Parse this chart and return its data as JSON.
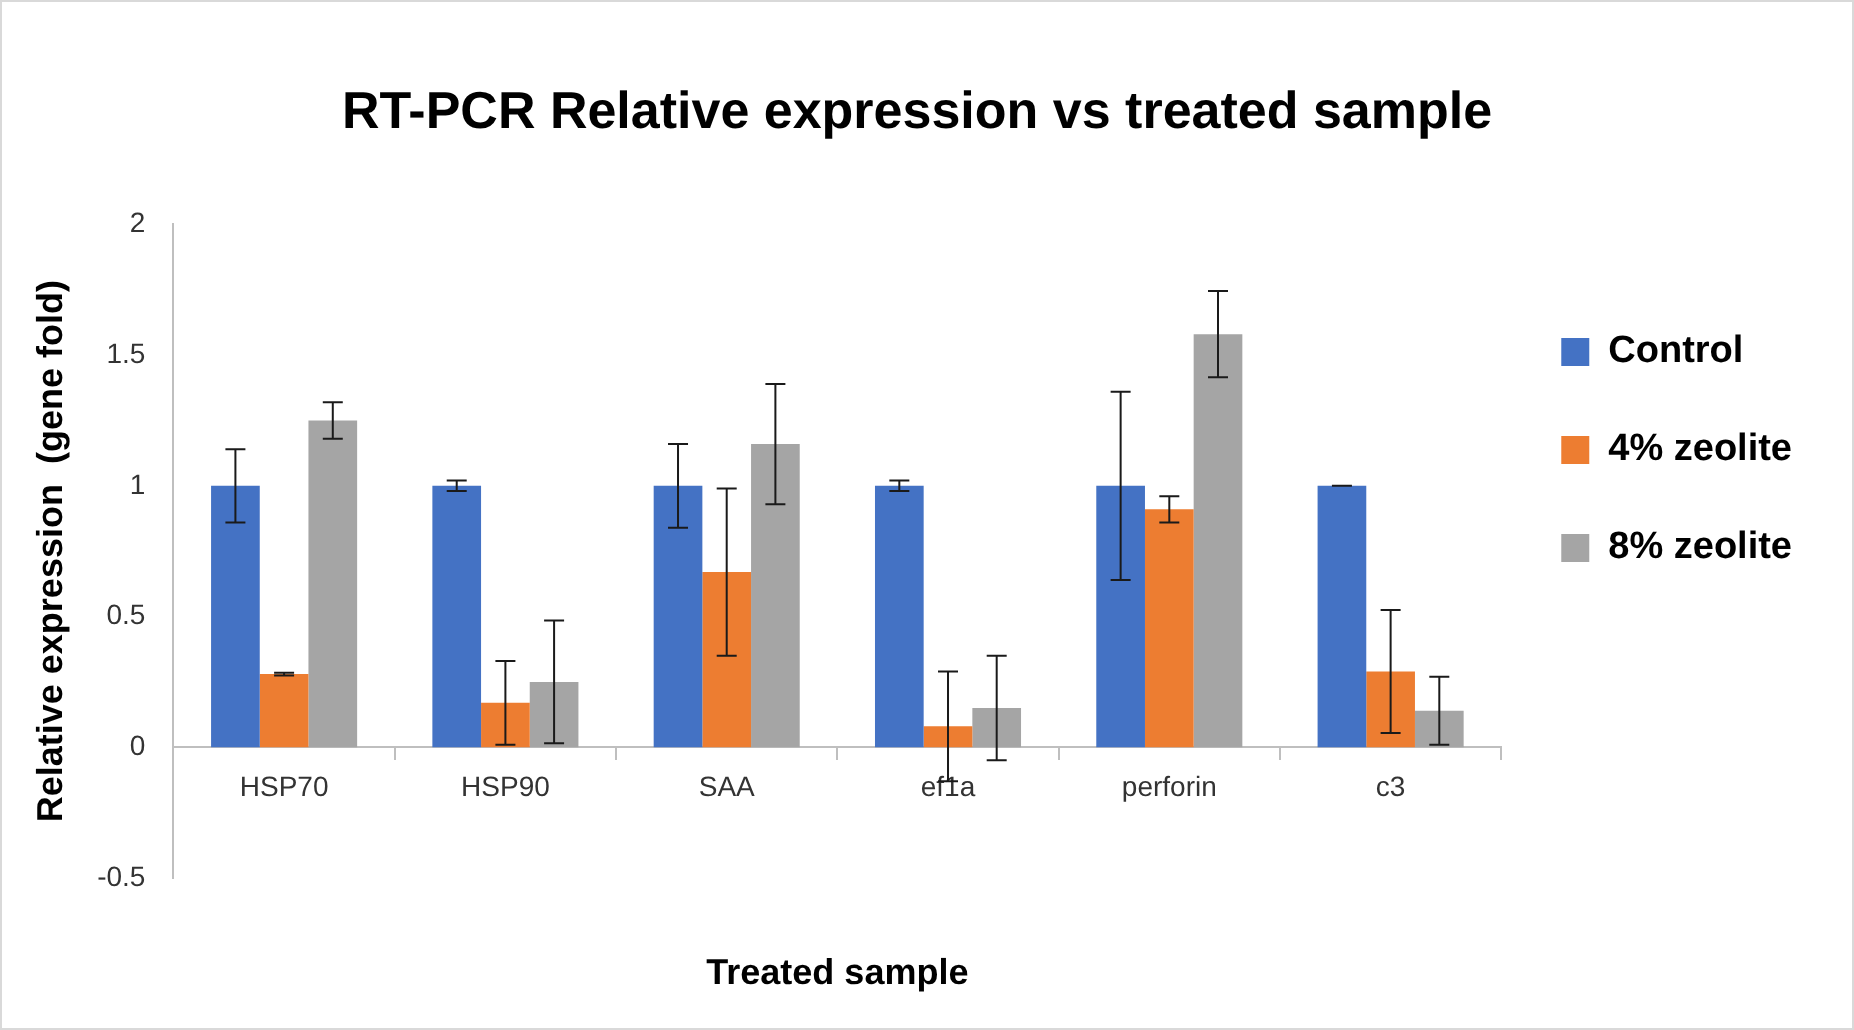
{
  "chart_data": {
    "type": "bar",
    "title": "RT-PCR Relative expression vs treated sample",
    "xlabel": "Treated sample",
    "ylabel": "Relative expression  (gene fold)",
    "categories": [
      "HSP70",
      "HSP90",
      "SAA",
      "ef1a",
      "perforin",
      "c3"
    ],
    "series": [
      {
        "name": "Control",
        "color": "#4472c4",
        "values": [
          1,
          1,
          1,
          1,
          1,
          1
        ],
        "errors": [
          0.14,
          0.02,
          0.16,
          0.02,
          0.36,
          0
        ]
      },
      {
        "name": "4% zeolite",
        "color": "#ed7d31",
        "values": [
          0.28,
          0.17,
          0.67,
          0.08,
          0.91,
          0.29
        ],
        "errors": [
          0.005,
          0.16,
          0.32,
          0.21,
          0.05,
          0.235
        ]
      },
      {
        "name": "8% zeolite",
        "color": "#a5a5a5",
        "values": [
          1.25,
          0.25,
          1.16,
          0.15,
          1.58,
          0.14
        ],
        "errors": [
          0.07,
          0.235,
          0.23,
          0.2,
          0.165,
          0.13
        ]
      }
    ],
    "ylim": [
      -0.5,
      2
    ],
    "yticks": [
      -0.5,
      0,
      0.5,
      1,
      1.5,
      2
    ],
    "grid": false,
    "legend": "right"
  }
}
